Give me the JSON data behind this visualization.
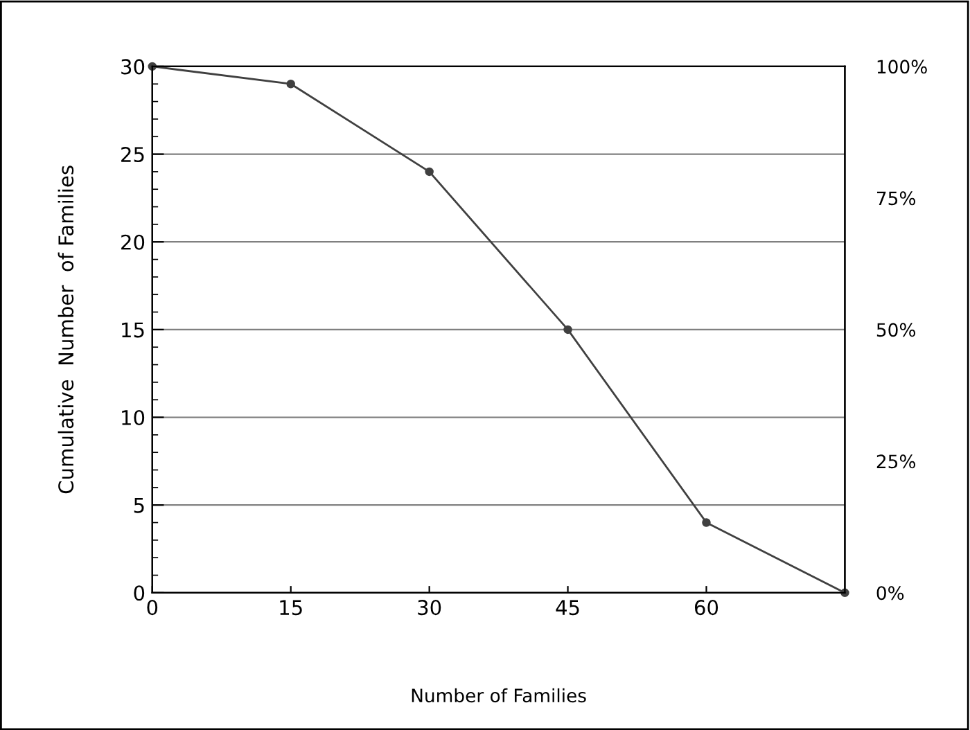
{
  "chart_data": {
    "type": "line",
    "xlabel": "Number of Families",
    "ylabel": "Cumulative  Number  of Families",
    "x": [
      0,
      15,
      30,
      45,
      60,
      75
    ],
    "series": [
      {
        "color": "#404040",
        "values": [
          30,
          29,
          24,
          15,
          4,
          0
        ]
      }
    ],
    "xlim": [
      0,
      75
    ],
    "xticks": [
      0,
      15,
      30,
      45,
      60
    ],
    "ylim": [
      0,
      30
    ],
    "yticks": [
      0,
      5,
      10,
      15,
      20,
      25,
      30
    ],
    "y2lim": [
      0,
      100
    ],
    "y2ticks": [
      {
        "value": 0,
        "label": "0%"
      },
      {
        "value": 25,
        "label": "25%"
      },
      {
        "value": 50,
        "label": "50%"
      },
      {
        "value": 75,
        "label": "75%"
      },
      {
        "value": 100,
        "label": "100%"
      }
    ],
    "grid": "y",
    "marker": "circle",
    "line_style": "solid",
    "legend": false
  }
}
